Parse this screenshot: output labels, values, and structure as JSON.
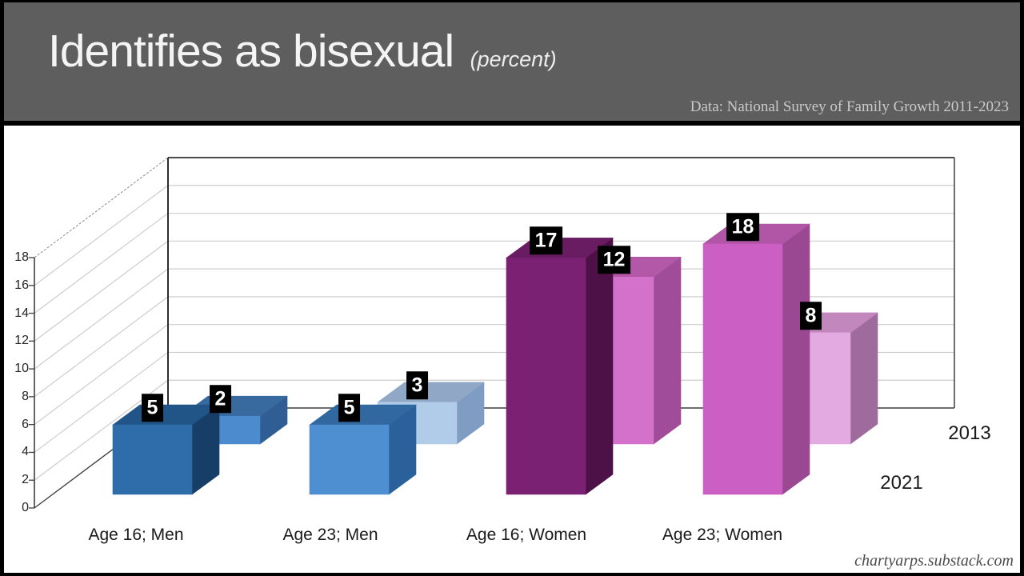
{
  "header": {
    "title": "Identifies as bisexual",
    "title_suffix": "(percent)",
    "source": "Data: National Survey of Family Growth 2011-2023"
  },
  "footer": {
    "url": "chartyarps.substack.com"
  },
  "chart_data": {
    "type": "bar",
    "projection": "3d",
    "title": "Identifies as bisexual (percent)",
    "source": "Data: National Survey of Family Growth 2011-2023",
    "categories": [
      "Age 16; Men",
      "Age 23; Men",
      "Age 16; Women",
      "Age 23; Women"
    ],
    "series": [
      {
        "name": "2013",
        "depth_row": "back",
        "values": [
          2,
          3,
          12,
          8
        ],
        "colors": [
          {
            "front": "#4C8CCE",
            "top": "#38699F",
            "side": "#305E94"
          },
          {
            "front": "#B1CCE9",
            "top": "#90A8C5",
            "side": "#7F9CC2"
          },
          {
            "front": "#D471CA",
            "top": "#B258A7",
            "side": "#A14C98"
          },
          {
            "front": "#E3A9E1",
            "top": "#C288BD",
            "side": "#9F6B9C"
          }
        ]
      },
      {
        "name": "2021",
        "depth_row": "front",
        "values": [
          5,
          5,
          17,
          18
        ],
        "colors": [
          {
            "front": "#2E6DA9",
            "top": "#215487",
            "side": "#173E66"
          },
          {
            "front": "#4E8FD1",
            "top": "#30689F",
            "side": "#2B619B"
          },
          {
            "front": "#7B2173",
            "top": "#691C61",
            "side": "#4E1147"
          },
          {
            "front": "#CC5FC3",
            "top": "#B156A6",
            "side": "#9B4892"
          }
        ]
      }
    ],
    "ylim": [
      0,
      18
    ],
    "yticks": [
      0,
      2,
      4,
      6,
      8,
      10,
      12,
      14,
      16,
      18
    ],
    "data_labels": true,
    "gridlines": true,
    "legend_position": "depth-axis-right",
    "grid_color": "#CDCDCD",
    "axis_color": "#3F3F3F",
    "label_box_bg": "#000000",
    "label_box_fg": "#FFFFFF"
  }
}
